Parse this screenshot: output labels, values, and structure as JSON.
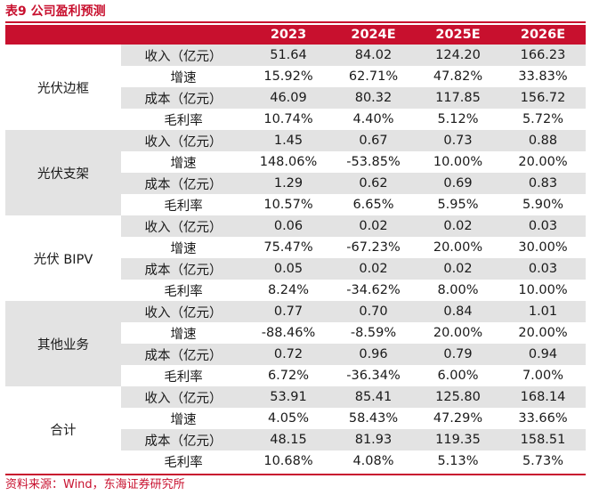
{
  "title": "表9  公司盈利预测",
  "columns": [
    "",
    "",
    "2023",
    "2024E",
    "2025E",
    "2026E"
  ],
  "groups": [
    {
      "name": "光伏边框",
      "rows": [
        {
          "label": "收入（亿元）",
          "values": [
            "51.64",
            "84.02",
            "124.20",
            "166.23"
          ]
        },
        {
          "label": "增速",
          "values": [
            "15.92%",
            "62.71%",
            "47.82%",
            "33.83%"
          ]
        },
        {
          "label": "成本（亿元）",
          "values": [
            "46.09",
            "80.32",
            "117.85",
            "156.72"
          ]
        },
        {
          "label": "毛利率",
          "values": [
            "10.74%",
            "4.40%",
            "5.12%",
            "5.72%"
          ]
        }
      ]
    },
    {
      "name": "光伏支架",
      "rows": [
        {
          "label": "收入（亿元）",
          "values": [
            "1.45",
            "0.67",
            "0.73",
            "0.88"
          ]
        },
        {
          "label": "增速",
          "values": [
            "148.06%",
            "-53.85%",
            "10.00%",
            "20.00%"
          ]
        },
        {
          "label": "成本（亿元）",
          "values": [
            "1.29",
            "0.62",
            "0.69",
            "0.83"
          ]
        },
        {
          "label": "毛利率",
          "values": [
            "10.57%",
            "6.65%",
            "5.95%",
            "5.90%"
          ]
        }
      ]
    },
    {
      "name": "光伏 BIPV",
      "rows": [
        {
          "label": "收入（亿元）",
          "values": [
            "0.06",
            "0.02",
            "0.02",
            "0.03"
          ]
        },
        {
          "label": "增速",
          "values": [
            "75.47%",
            "-67.23%",
            "20.00%",
            "30.00%"
          ]
        },
        {
          "label": "成本（亿元）",
          "values": [
            "0.05",
            "0.02",
            "0.02",
            "0.03"
          ]
        },
        {
          "label": "毛利率",
          "values": [
            "8.24%",
            "-34.62%",
            "8.00%",
            "10.00%"
          ]
        }
      ]
    },
    {
      "name": "其他业务",
      "rows": [
        {
          "label": "收入（亿元）",
          "values": [
            "0.77",
            "0.70",
            "0.84",
            "1.01"
          ]
        },
        {
          "label": "增速",
          "values": [
            "-88.46%",
            "-8.59%",
            "20.00%",
            "20.00%"
          ]
        },
        {
          "label": "成本（亿元）",
          "values": [
            "0.72",
            "0.96",
            "0.79",
            "0.94"
          ]
        },
        {
          "label": "毛利率",
          "values": [
            "6.72%",
            "-36.34%",
            "6.00%",
            "7.00%"
          ]
        }
      ]
    },
    {
      "name": "合计",
      "rows": [
        {
          "label": "收入（亿元）",
          "values": [
            "53.91",
            "85.41",
            "125.80",
            "168.14"
          ]
        },
        {
          "label": "增速",
          "values": [
            "4.05%",
            "58.43%",
            "47.29%",
            "33.66%"
          ]
        },
        {
          "label": "成本（亿元）",
          "values": [
            "48.15",
            "81.93",
            "119.35",
            "158.51"
          ]
        },
        {
          "label": "毛利率",
          "values": [
            "10.68%",
            "4.08%",
            "5.13%",
            "5.73%"
          ]
        }
      ]
    }
  ],
  "source": "资料来源：Wind，东海证券研究所",
  "colors": {
    "accent": "#c8102e",
    "shade": "#e3e3e3"
  }
}
